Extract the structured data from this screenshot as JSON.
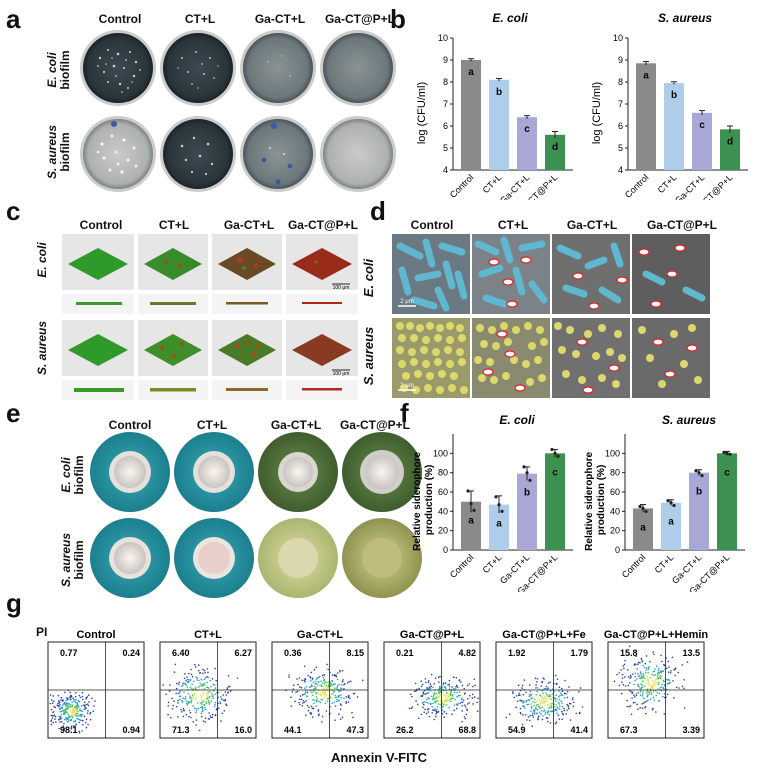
{
  "panel_letters": [
    "a",
    "b",
    "c",
    "d",
    "e",
    "f",
    "g"
  ],
  "panel_a": {
    "columns": [
      "Control",
      "CT+L",
      "Ga-CT+L",
      "Ga-CT@P+L"
    ],
    "rows": [
      {
        "species": "E. coli",
        "suffix": "biofilm"
      },
      {
        "species": "S. aureus",
        "suffix": "biofilm"
      }
    ]
  },
  "panel_b": {
    "chart_data": [
      {
        "type": "bar",
        "title": "E. coli",
        "ylabel": "log (CFU/ml)",
        "ylim": [
          4,
          10
        ],
        "yticks": [
          4,
          5,
          6,
          7,
          8,
          9,
          10
        ],
        "categories": [
          "Control",
          "CT+L",
          "Ga-CT+L",
          "Ga-CT@P+L"
        ],
        "values": [
          9.0,
          8.1,
          6.4,
          5.6
        ],
        "errors": [
          0.06,
          0.06,
          0.07,
          0.15
        ],
        "letters": [
          "a",
          "b",
          "c",
          "d"
        ],
        "colors": [
          "#8a8a8a",
          "#aecdea",
          "#a9a7d6",
          "#3d9150"
        ]
      },
      {
        "type": "bar",
        "title": "S. aureus",
        "ylabel": "log (CFU/ml)",
        "ylim": [
          4,
          10
        ],
        "yticks": [
          4,
          5,
          6,
          7,
          8,
          9,
          10
        ],
        "categories": [
          "Control",
          "CT+L",
          "Ga-CT+L",
          "Ga-CT@P+L"
        ],
        "values": [
          8.85,
          7.95,
          6.6,
          5.85
        ],
        "errors": [
          0.08,
          0.06,
          0.1,
          0.15
        ],
        "letters": [
          "a",
          "b",
          "c",
          "d"
        ],
        "colors": [
          "#8a8a8a",
          "#aecdea",
          "#a9a7d6",
          "#3d9150"
        ]
      }
    ]
  },
  "panel_c": {
    "columns": [
      "Control",
      "CT+L",
      "Ga-CT+L",
      "Ga-CT@P+L"
    ],
    "rows": [
      "E. coli",
      "S. aureus"
    ],
    "scale_bar": "100 μm"
  },
  "panel_d": {
    "columns": [
      "Control",
      "CT+L",
      "Ga-CT+L",
      "Ga-CT@P+L"
    ],
    "rows": [
      "E. coli",
      "S. aureus"
    ],
    "scale_bar": "2 μm"
  },
  "panel_e": {
    "columns": [
      "Control",
      "CT+L",
      "Ga-CT+L",
      "Ga-CT@P+L"
    ],
    "rows": [
      {
        "species": "E. coli",
        "suffix": "biofilm"
      },
      {
        "species": "S. aureus",
        "suffix": "biofilm"
      }
    ]
  },
  "panel_f": {
    "chart_data": [
      {
        "type": "bar",
        "title": "E. coli",
        "ylabel": "Relative siderophore production (%)",
        "ylabel_lines": [
          "Relative siderophore",
          "production (%)"
        ],
        "ylim": [
          0,
          120
        ],
        "yticks": [
          0,
          20,
          40,
          60,
          80,
          100
        ],
        "categories": [
          "Control",
          "CT+L",
          "Ga-CT+L",
          "Ga-CT@P+L"
        ],
        "values": [
          50,
          47,
          79,
          100
        ],
        "errors": [
          11,
          9,
          7,
          4
        ],
        "points": [
          [
            61,
            48,
            41
          ],
          [
            55,
            47,
            40
          ],
          [
            86,
            80,
            72
          ],
          [
            104,
            100,
            97
          ]
        ],
        "letters": [
          "a",
          "a",
          "b",
          "c"
        ],
        "colors": [
          "#8a8a8a",
          "#aecdea",
          "#a9a7d6",
          "#3d9150"
        ]
      },
      {
        "type": "bar",
        "title": "S. aureus",
        "ylabel": "Relative siderophore production (%)",
        "ylabel_lines": [
          "Relative siderophore",
          "production (%)"
        ],
        "ylim": [
          0,
          120
        ],
        "yticks": [
          0,
          20,
          40,
          60,
          80,
          100
        ],
        "categories": [
          "Control",
          "CT+L",
          "Ga-CT+L",
          "Ga-CT@P+L"
        ],
        "values": [
          43,
          49,
          80,
          100
        ],
        "errors": [
          4,
          3,
          3,
          2
        ],
        "points": [
          [
            45,
            43,
            40
          ],
          [
            51,
            49,
            46
          ],
          [
            82,
            80,
            77
          ],
          [
            101,
            100,
            99
          ]
        ],
        "letters": [
          "a",
          "a",
          "b",
          "c"
        ],
        "colors": [
          "#8a8a8a",
          "#aecdea",
          "#a9a7d6",
          "#3d9150"
        ]
      }
    ]
  },
  "panel_g": {
    "y_axis_label": "PI",
    "x_axis_label": "Annexin V-FITC",
    "plots": [
      {
        "title": "Control",
        "q": [
          "0.77",
          "0.24",
          "98.1",
          "0.94"
        ]
      },
      {
        "title": "CT+L",
        "q": [
          "6.40",
          "6.27",
          "71.3",
          "16.0"
        ]
      },
      {
        "title": "Ga-CT+L",
        "q": [
          "0.36",
          "8.15",
          "44.1",
          "47.3"
        ]
      },
      {
        "title": "Ga-CT@P+L",
        "q": [
          "0.21",
          "4.82",
          "26.2",
          "68.8"
        ]
      },
      {
        "title": "Ga-CT@P+L+Fe",
        "q": [
          "1.92",
          "1.79",
          "54.9",
          "41.4"
        ]
      },
      {
        "title": "Ga-CT@P+L+Hemin",
        "q": [
          "15.8",
          "13.5",
          "67.3",
          "3.39"
        ]
      }
    ]
  }
}
